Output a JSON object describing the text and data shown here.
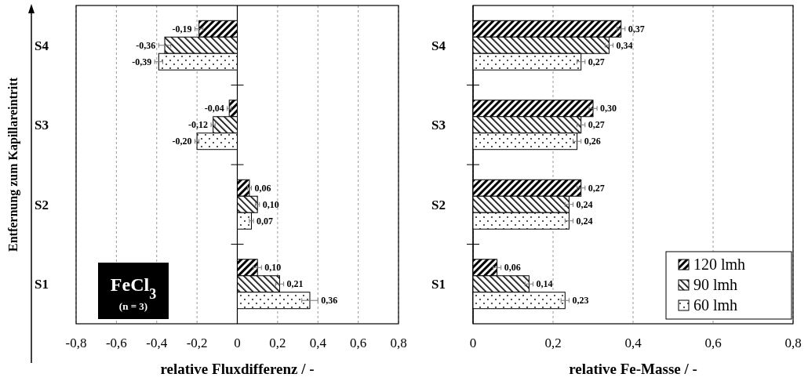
{
  "chart_data": [
    {
      "type": "bar",
      "orientation": "horizontal",
      "ylabel": "Entfernung zum Kapillareintritt",
      "xlabel": "relative Fluxdifferenz / -",
      "categories": [
        "S4",
        "S3",
        "S2",
        "S1"
      ],
      "xlim": [
        -0.8,
        0.8
      ],
      "xticks": [
        {
          "value": -0.8,
          "label": "-0,8"
        },
        {
          "value": -0.6,
          "label": "-0,6"
        },
        {
          "value": -0.4,
          "label": "-0,4"
        },
        {
          "value": -0.2,
          "label": "-0,2"
        },
        0,
        {
          "value": 0.2,
          "label": "0,2"
        },
        {
          "value": 0.4,
          "label": "0,4"
        },
        {
          "value": 0.6,
          "label": "0,6"
        },
        {
          "value": 0.8,
          "label": "0,8"
        }
      ],
      "grid": "x",
      "legend": false,
      "annotations": [
        "FeCl$_{3}$",
        "(n = 3)"
      ],
      "series": [
        {
          "color": "#000000",
          "values": [
            -0.19,
            -0.04,
            0.06,
            0.1
          ],
          "errors": [
            0.02,
            0.01,
            0.01,
            0.02
          ],
          "value_labels": [
            "-0,19",
            "-0,04",
            "0,06",
            "0,10"
          ]
        },
        {
          "color": "#000000",
          "values": [
            -0.36,
            -0.12,
            0.1,
            0.21
          ],
          "errors": [
            0.03,
            0.01,
            0.01,
            0.02
          ],
          "value_labels": [
            "-0,36",
            "-0,12",
            "0,10",
            "0,21"
          ]
        },
        {
          "color": "#000000",
          "values": [
            -0.39,
            -0.2,
            0.07,
            0.36
          ],
          "errors": [
            0.02,
            0.01,
            0.01,
            0.04
          ],
          "value_labels": [
            "-0,39",
            "-0,20",
            "0,07",
            "0,36"
          ]
        }
      ]
    },
    {
      "type": "bar",
      "orientation": "horizontal",
      "xlabel": "relative Fe-Masse / -",
      "categories": [
        "S4",
        "S3",
        "S2",
        "S1"
      ],
      "xlim": [
        0,
        0.8
      ],
      "xticks": [
        0,
        {
          "value": 0.2,
          "label": "0,2"
        },
        {
          "value": 0.4,
          "label": "0,4"
        },
        {
          "value": 0.6,
          "label": "0,6"
        },
        {
          "value": 0.8,
          "label": "0,8"
        }
      ],
      "grid": "x",
      "legend": "bottom right",
      "series": [
        {
          "name": "120 lmh",
          "color": "#000000",
          "values": [
            0.37,
            0.3,
            0.27,
            0.06
          ],
          "errors": [
            0.01,
            0.01,
            0.01,
            0.01
          ],
          "value_labels": [
            "0,37",
            "0,30",
            "0,27",
            "0,06"
          ]
        },
        {
          "name": "90 lmh",
          "color": "#000000",
          "values": [
            0.34,
            0.27,
            0.24,
            0.14
          ],
          "errors": [
            0.01,
            0.01,
            0.01,
            0.01
          ],
          "value_labels": [
            "0,34",
            "0,27",
            "0,24",
            "0,14"
          ]
        },
        {
          "name": "60 lmh",
          "color": "#000000",
          "values": [
            0.27,
            0.26,
            0.24,
            0.23
          ],
          "errors": [
            0.01,
            0.01,
            0.01,
            0.01
          ],
          "value_labels": [
            "0,27",
            "0,26",
            "0,24",
            "0,23"
          ]
        }
      ]
    }
  ]
}
